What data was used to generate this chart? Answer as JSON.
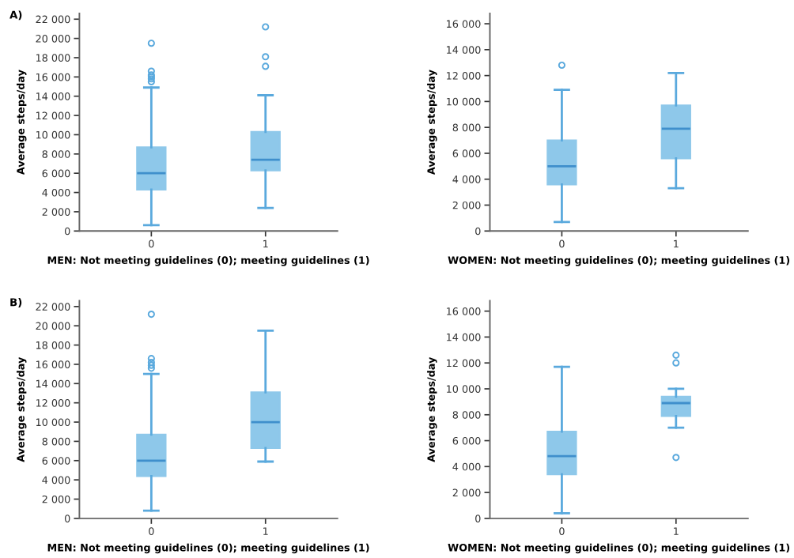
{
  "chart_data": [
    {
      "type": "box",
      "annotations": [
        "A)"
      ],
      "xlabel": "MEN: Not meeting guidelines (0); meeting guidelines (1)",
      "ylabel": "Average steps/day",
      "categories": [
        "0",
        "1"
      ],
      "color": "#8ec8ea",
      "ylim": [
        0,
        22600
      ],
      "yticks": [
        0,
        {
          "value": 2000,
          "label": "2 000"
        },
        {
          "value": 4000,
          "label": "4 000"
        },
        {
          "value": 6000,
          "label": "6 000"
        },
        {
          "value": 8000,
          "label": "8 000"
        },
        {
          "value": 10000,
          "label": "10 000"
        },
        {
          "value": 12000,
          "label": "12 000"
        },
        {
          "value": 14000,
          "label": "14 000"
        },
        {
          "value": 16000,
          "label": "16 000"
        },
        {
          "value": 18000,
          "label": "18 000"
        },
        {
          "value": 20000,
          "label": "20 000"
        },
        {
          "value": 22000,
          "label": "22 000"
        }
      ],
      "boxes": [
        {
          "low": 600,
          "q1": 4300,
          "median": 6000,
          "q3": 8700,
          "high": 14900,
          "outliers": [
            15500,
            15800,
            16000,
            16200,
            16600,
            19500
          ]
        },
        {
          "low": 2400,
          "q1": 6300,
          "median": 7400,
          "q3": 10300,
          "high": 14100,
          "outliers": [
            17100,
            18100,
            21200
          ]
        }
      ]
    },
    {
      "type": "box",
      "xlabel": "WOMEN: Not meeting guidelines (0); meeting guidelines (1)",
      "ylabel": "Average steps/day",
      "categories": [
        "0",
        "1"
      ],
      "color": "#8ec8ea",
      "ylim": [
        0,
        16800
      ],
      "yticks": [
        0,
        {
          "value": 2000,
          "label": "2 000"
        },
        {
          "value": 4000,
          "label": "4 000"
        },
        {
          "value": 6000,
          "label": "6 000"
        },
        {
          "value": 8000,
          "label": "8 000"
        },
        {
          "value": 10000,
          "label": "10 000"
        },
        {
          "value": 12000,
          "label": "12 000"
        },
        {
          "value": 14000,
          "label": "14 000"
        },
        {
          "value": 16000,
          "label": "16 000"
        }
      ],
      "boxes": [
        {
          "low": 700,
          "q1": 3600,
          "median": 5000,
          "q3": 7000,
          "high": 10900,
          "outliers": [
            12800
          ]
        },
        {
          "low": 3300,
          "q1": 5600,
          "median": 7900,
          "q3": 9700,
          "high": 12200
        }
      ]
    },
    {
      "type": "box",
      "annotations": [
        "B)"
      ],
      "xlabel": "MEN: Not meeting guidelines (0); meeting guidelines (1)",
      "ylabel": "Average steps/day",
      "categories": [
        "0",
        "1"
      ],
      "color": "#8ec8ea",
      "ylim": [
        0,
        22600
      ],
      "yticks": [
        0,
        {
          "value": 2000,
          "label": "2 000"
        },
        {
          "value": 4000,
          "label": "4 000"
        },
        {
          "value": 6000,
          "label": "6 000"
        },
        {
          "value": 8000,
          "label": "8 000"
        },
        {
          "value": 10000,
          "label": "10 000"
        },
        {
          "value": 12000,
          "label": "12 000"
        },
        {
          "value": 14000,
          "label": "14 000"
        },
        {
          "value": 16000,
          "label": "16 000"
        },
        {
          "value": 18000,
          "label": "18 000"
        },
        {
          "value": 20000,
          "label": "20 000"
        },
        {
          "value": 22000,
          "label": "22 000"
        }
      ],
      "boxes": [
        {
          "low": 800,
          "q1": 4400,
          "median": 6000,
          "q3": 8700,
          "high": 15000,
          "outliers": [
            15600,
            15900,
            16200,
            16600,
            21200
          ]
        },
        {
          "low": 5900,
          "q1": 7300,
          "median": 10000,
          "q3": 13100,
          "high": 19500
        }
      ]
    },
    {
      "type": "box",
      "xlabel": "WOMEN: Not meeting guidelines (0); meeting guidelines (1)",
      "ylabel": "Average steps/day",
      "categories": [
        "0",
        "1"
      ],
      "color": "#8ec8ea",
      "ylim": [
        0,
        16800
      ],
      "yticks": [
        0,
        {
          "value": 2000,
          "label": "2 000"
        },
        {
          "value": 4000,
          "label": "4 000"
        },
        {
          "value": 6000,
          "label": "6 000"
        },
        {
          "value": 8000,
          "label": "8 000"
        },
        {
          "value": 10000,
          "label": "10 000"
        },
        {
          "value": 12000,
          "label": "12 000"
        },
        {
          "value": 14000,
          "label": "14 000"
        },
        {
          "value": 16000,
          "label": "16 000"
        }
      ],
      "boxes": [
        {
          "low": 400,
          "q1": 3400,
          "median": 4800,
          "q3": 6700,
          "high": 11700
        },
        {
          "low": 7000,
          "q1": 7900,
          "median": 8900,
          "q3": 9400,
          "high": 10000,
          "outliers": [
            4700,
            12000,
            12600
          ]
        }
      ]
    }
  ]
}
